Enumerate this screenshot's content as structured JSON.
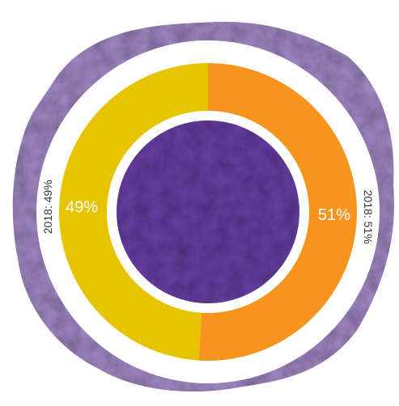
{
  "chart_data": {
    "type": "donut",
    "categories": [
      "2018: 51%",
      "2018: 49%"
    ],
    "values": [
      51,
      49
    ],
    "value_labels": [
      "51%",
      "49%"
    ],
    "colors": [
      "#f7941d",
      "#e8c300"
    ]
  }
}
